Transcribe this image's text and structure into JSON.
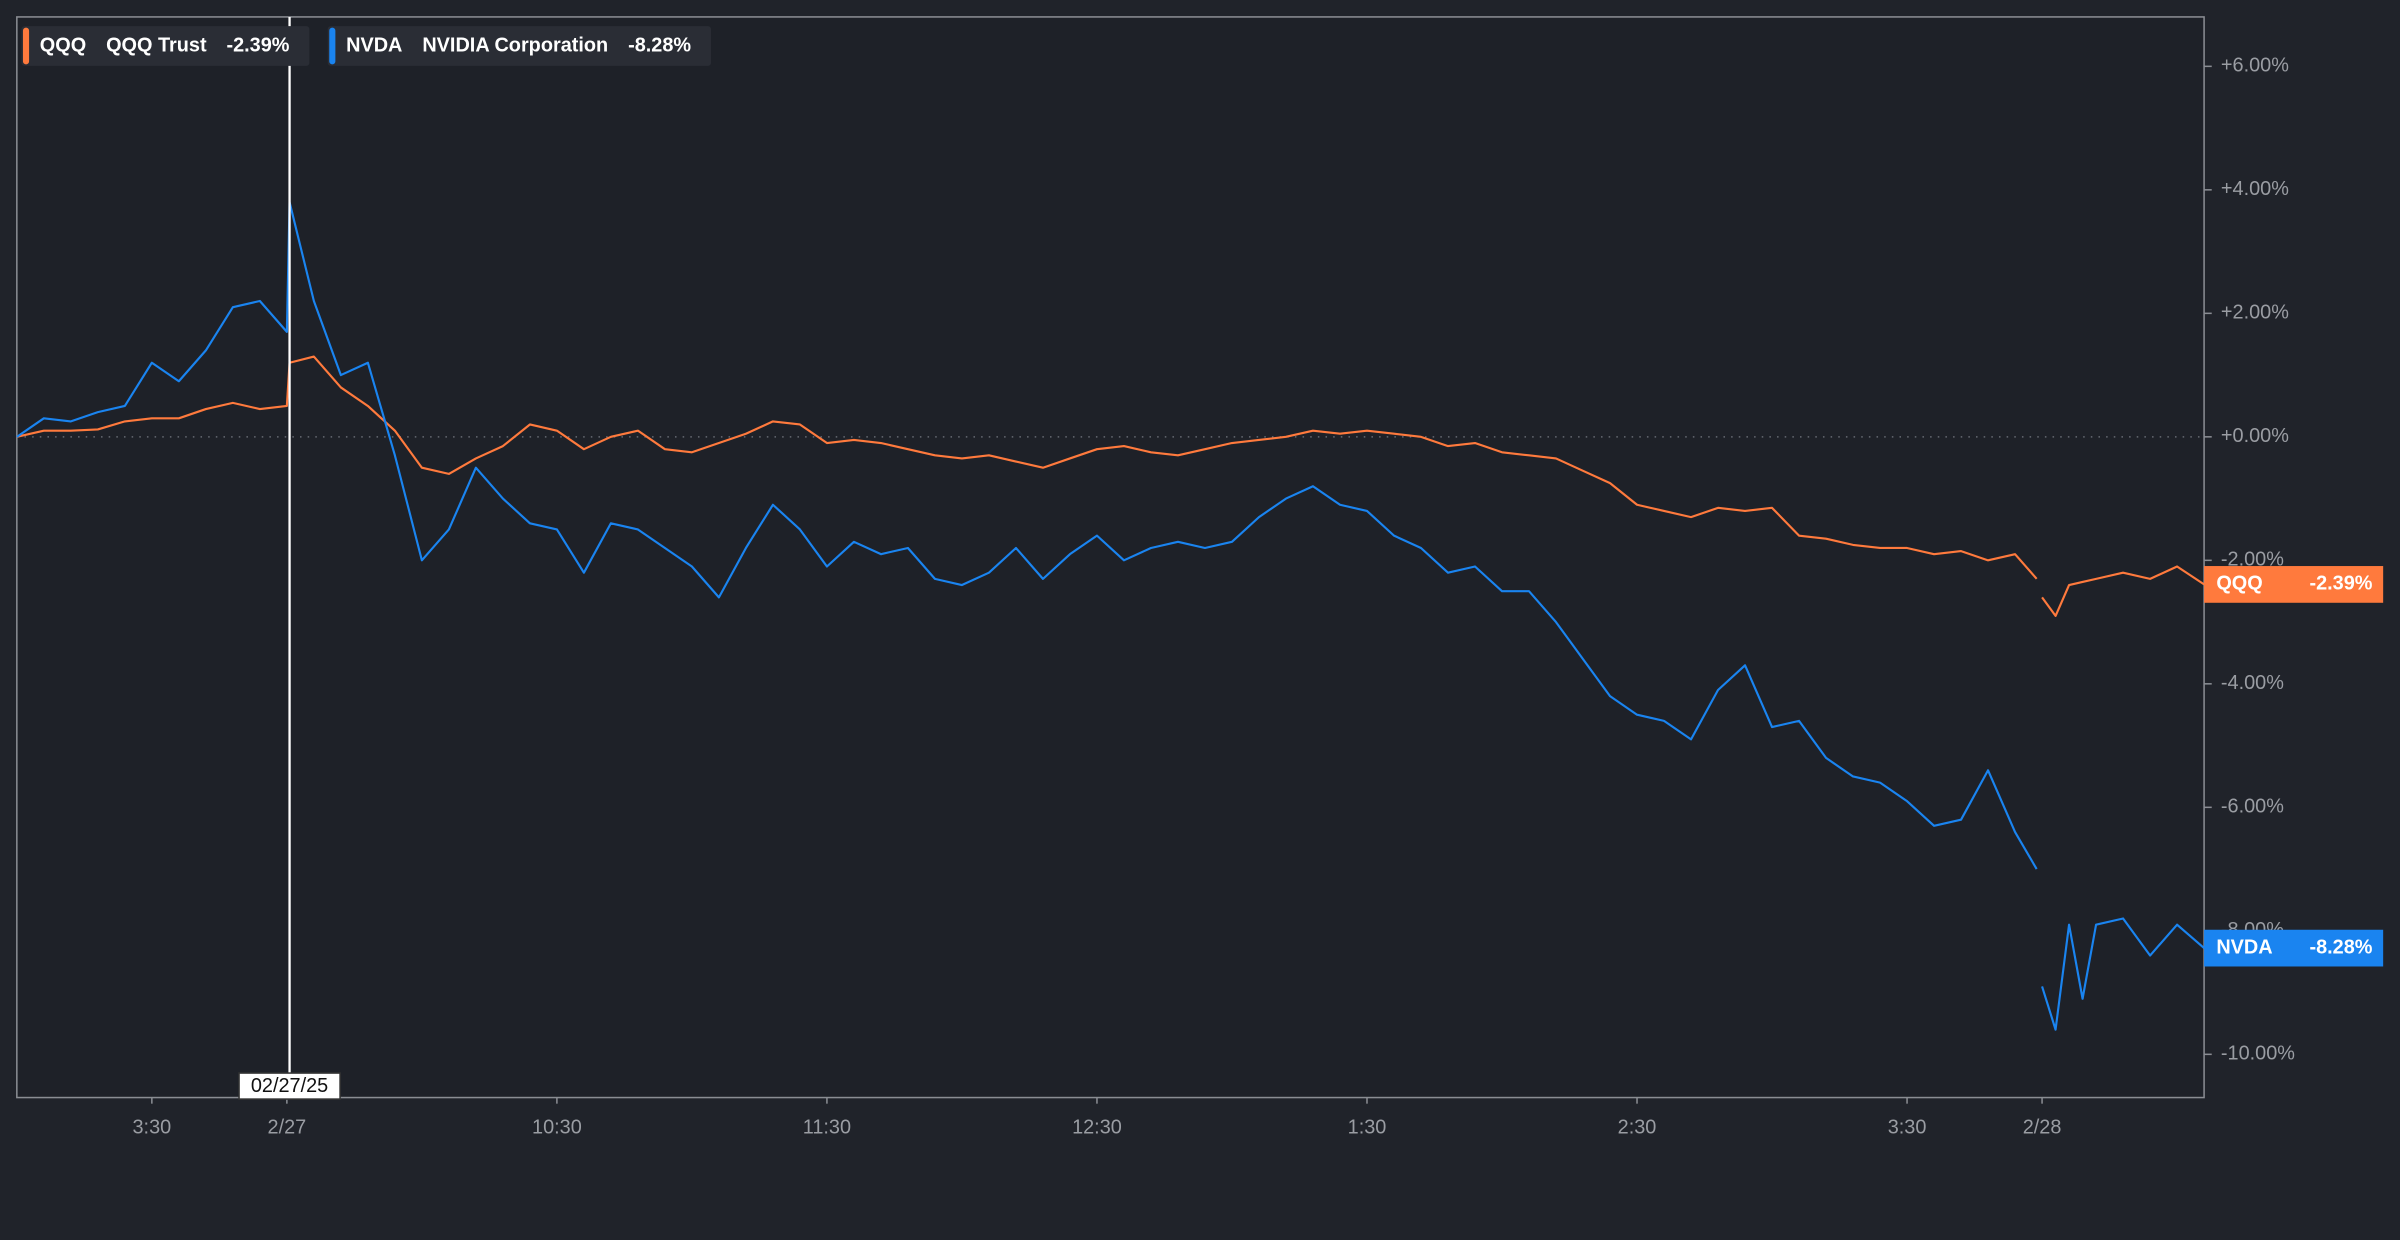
{
  "chart_data": {
    "type": "line",
    "crosshair": {
      "x": 1.01,
      "label": "02/27/25"
    },
    "x": [
      0,
      0.1,
      0.2,
      0.3,
      0.4,
      0.5,
      0.6,
      0.7,
      0.8,
      0.9,
      1.0,
      1.01,
      1.1,
      1.2,
      1.3,
      1.4,
      1.5,
      1.6,
      1.7,
      1.8,
      1.9,
      2.0,
      2.1,
      2.2,
      2.3,
      2.4,
      2.5,
      2.6,
      2.7,
      2.8,
      2.9,
      3.0,
      3.1,
      3.2,
      3.3,
      3.4,
      3.5,
      3.6,
      3.7,
      3.8,
      3.9,
      4.0,
      4.1,
      4.2,
      4.3,
      4.4,
      4.5,
      4.6,
      4.7,
      4.8,
      4.9,
      5.0,
      5.1,
      5.2,
      5.3,
      5.4,
      5.5,
      5.6,
      5.7,
      5.8,
      5.9,
      6.0,
      6.1,
      6.2,
      6.3,
      6.4,
      6.5,
      6.6,
      6.7,
      6.8,
      6.9,
      7.0,
      7.1,
      7.2,
      7.3,
      7.4,
      7.48,
      7.49,
      7.5,
      7.55,
      7.6,
      7.65,
      7.7,
      7.8,
      7.9,
      8.0,
      8.1
    ],
    "series": [
      {
        "name": "QQQ",
        "full_name": "QQQ Trust",
        "change_label": "-2.39%",
        "color": "#ff7a3d",
        "values": [
          0,
          0.1,
          0.1,
          0.12,
          0.25,
          0.3,
          0.3,
          0.45,
          0.55,
          0.45,
          0.5,
          1.2,
          1.3,
          0.8,
          0.5,
          0.1,
          -0.5,
          -0.6,
          -0.35,
          -0.15,
          0.2,
          0.1,
          -0.2,
          0,
          0.1,
          -0.2,
          -0.25,
          -0.1,
          0.05,
          0.25,
          0.2,
          -0.1,
          -0.05,
          -0.1,
          -0.2,
          -0.3,
          -0.35,
          -0.3,
          -0.4,
          -0.5,
          -0.35,
          -0.2,
          -0.15,
          -0.25,
          -0.3,
          -0.2,
          -0.1,
          -0.05,
          0,
          0.1,
          0.05,
          0.1,
          0.05,
          0,
          -0.15,
          -0.1,
          -0.25,
          -0.3,
          -0.35,
          -0.55,
          -0.75,
          -1.1,
          -1.2,
          -1.3,
          -1.15,
          -1.2,
          -1.15,
          -1.6,
          -1.65,
          -1.75,
          -1.8,
          -1.8,
          -1.9,
          -1.85,
          -2.0,
          -1.9,
          -2.3,
          null,
          -2.6,
          -2.9,
          -2.4,
          -2.35,
          -2.3,
          -2.2,
          -2.3,
          -2.1,
          -2.39
        ]
      },
      {
        "name": "NVDA",
        "full_name": "NVIDIA Corporation",
        "change_label": "-8.28%",
        "color": "#1a84f0",
        "values": [
          0,
          0.3,
          0.25,
          0.4,
          0.5,
          1.2,
          0.9,
          1.4,
          2.1,
          2.2,
          1.7,
          3.8,
          2.2,
          1.0,
          1.2,
          -0.3,
          -2.0,
          -1.5,
          -0.5,
          -1.0,
          -1.4,
          -1.5,
          -2.2,
          -1.4,
          -1.5,
          -1.8,
          -2.1,
          -2.6,
          -1.8,
          -1.1,
          -1.5,
          -2.1,
          -1.7,
          -1.9,
          -1.8,
          -2.3,
          -2.4,
          -2.2,
          -1.8,
          -2.3,
          -1.9,
          -1.6,
          -2.0,
          -1.8,
          -1.7,
          -1.8,
          -1.7,
          -1.3,
          -1.0,
          -0.8,
          -1.1,
          -1.2,
          -1.6,
          -1.8,
          -2.2,
          -2.1,
          -2.5,
          -2.5,
          -3.0,
          -3.6,
          -4.2,
          -4.5,
          -4.6,
          -4.9,
          -4.1,
          -3.7,
          -4.7,
          -4.6,
          -5.2,
          -5.5,
          -5.6,
          -5.9,
          -6.3,
          -6.2,
          -5.4,
          -6.4,
          -7.0,
          null,
          -8.9,
          -9.6,
          -7.9,
          -9.1,
          -7.9,
          -7.8,
          -8.4,
          -7.9,
          -8.28
        ]
      }
    ],
    "xlim": [
      0,
      8.1
    ],
    "xticks": [
      {
        "value": 0.5,
        "label": "3:30"
      },
      {
        "value": 1.0,
        "label": "2/27"
      },
      {
        "value": 2.0,
        "label": "10:30"
      },
      {
        "value": 3.0,
        "label": "11:30"
      },
      {
        "value": 4.0,
        "label": "12:30"
      },
      {
        "value": 5.0,
        "label": "1:30"
      },
      {
        "value": 6.0,
        "label": "2:30"
      },
      {
        "value": 7.0,
        "label": "3:30"
      },
      {
        "value": 7.5,
        "label": "2/28"
      }
    ],
    "ylim": [
      -10.7,
      6.8
    ],
    "yticks": [
      {
        "value": -10,
        "label": "-10.00%"
      },
      {
        "value": -8,
        "label": "-8.00%"
      },
      {
        "value": -6,
        "label": "-6.00%"
      },
      {
        "value": -4,
        "label": "-4.00%"
      },
      {
        "value": -2,
        "label": "-2.00%"
      },
      {
        "value": 0,
        "label": "+0.00%"
      },
      {
        "value": 2,
        "label": "+2.00%"
      },
      {
        "value": 4,
        "label": "+4.00%"
      },
      {
        "value": 6,
        "label": "+6.00%"
      }
    ]
  }
}
